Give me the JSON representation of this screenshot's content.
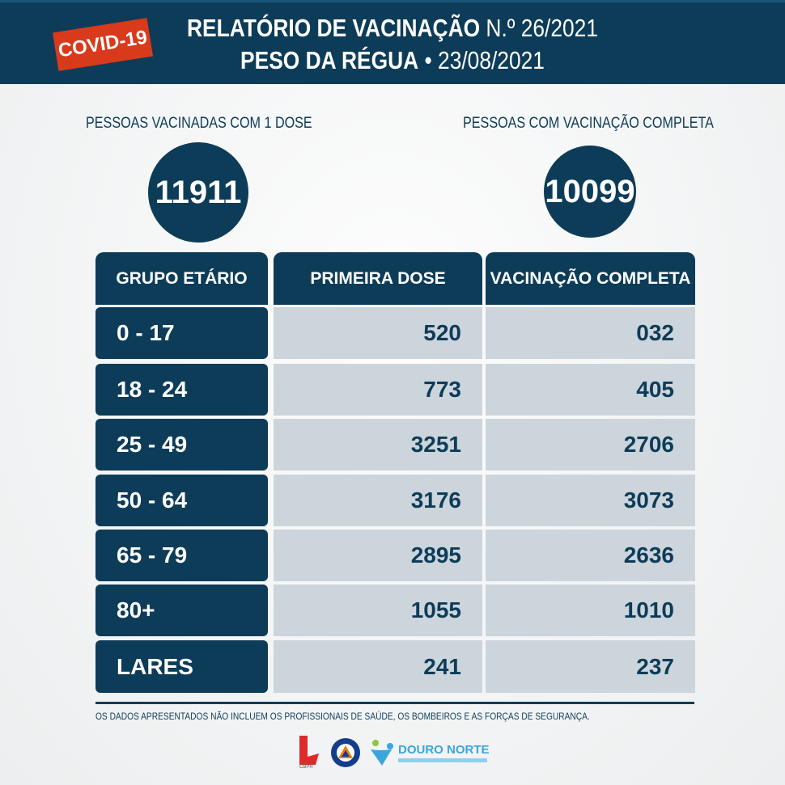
{
  "header": {
    "badge": "COVID-19",
    "title_bold": "RELATÓRIO DE VACINAÇÃO",
    "title_num": "N.º 26/2021",
    "subtitle_bold": "PESO DA RÉGUA",
    "subtitle_date": "• 23/08/2021"
  },
  "summary": {
    "first_label": "PESSOAS VACINADAS COM 1 DOSE",
    "first_value": "11911",
    "complete_label": "PESSOAS COM VACINAÇÃO COMPLETA",
    "complete_value": "10099"
  },
  "table": {
    "headers": [
      "GRUPO ETÁRIO",
      "PRIMEIRA DOSE",
      "VACINAÇÃO COMPLETA"
    ],
    "rows": [
      [
        "0 - 17",
        "520",
        "032"
      ],
      [
        "18 - 24",
        "773",
        "405"
      ],
      [
        "25 - 49",
        "3251",
        "2706"
      ],
      [
        "50 - 64",
        "3176",
        "3073"
      ],
      [
        "65 - 79",
        "2895",
        "2636"
      ],
      [
        "80+",
        "1055",
        "1010"
      ],
      [
        "LARES",
        "241",
        "237"
      ]
    ]
  },
  "footnote": "OS DADOS APRESENTADOS NÃO INCLUEM OS PROFISSIONAIS DE SAÚDE, OS BOMBEIROS E AS FORÇAS DE SEGURANÇA.",
  "logos": {
    "cbpr": "CBPR",
    "protecao": "PROTECÇÃO CIVIL",
    "douro": "DOURO NORTE"
  },
  "colors": {
    "primary": "#0d3c58",
    "accent": "#d93a1c",
    "cell": "#cdd5dc"
  }
}
